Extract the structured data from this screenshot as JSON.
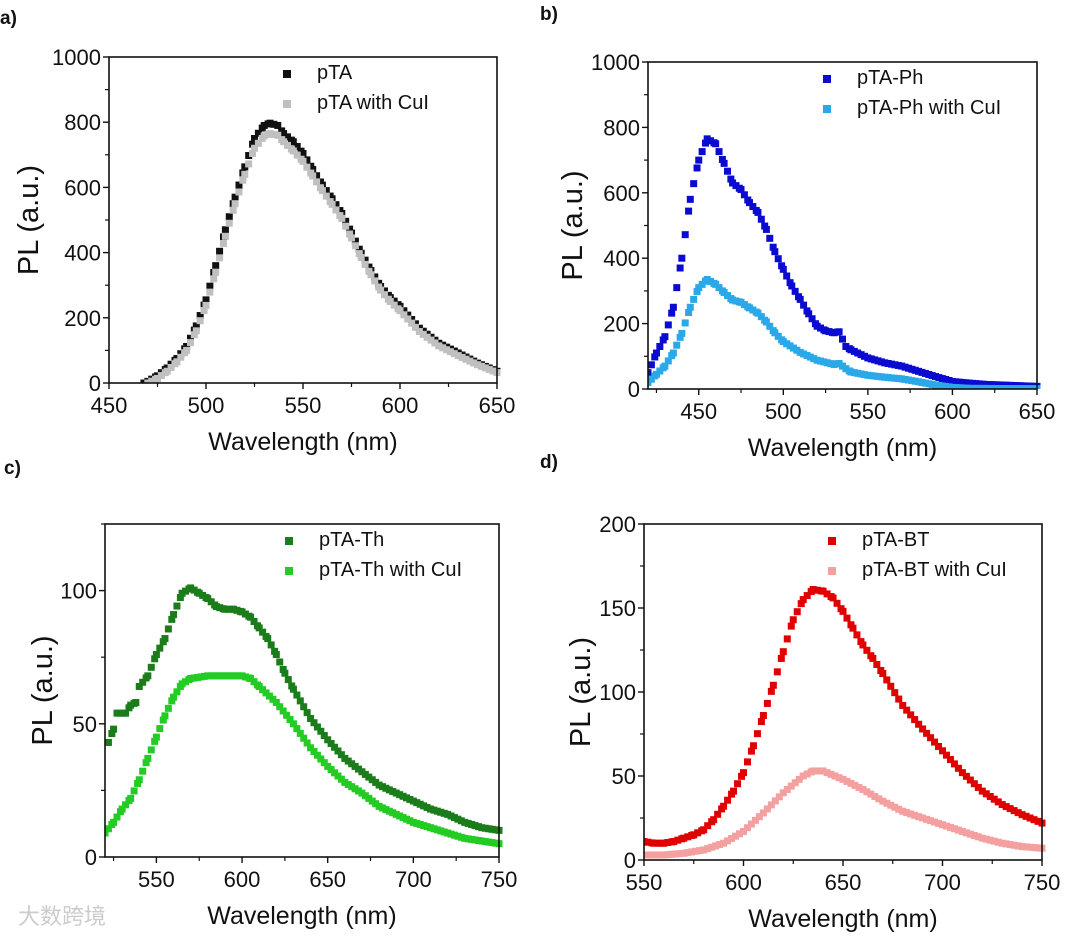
{
  "watermark": "大数跨境",
  "chart_data": [
    {
      "panel": "a)",
      "type": "scatter",
      "xlabel": "Wavelength (nm)",
      "ylabel": "PL (a.u.)",
      "xlim": [
        450,
        650
      ],
      "ylim": [
        0,
        1000
      ],
      "xticks": [
        450,
        500,
        550,
        600,
        650
      ],
      "yticks": [
        0,
        200,
        400,
        600,
        800,
        1000
      ],
      "xminor": 25,
      "yminor": 100,
      "legend": "top-right",
      "series": [
        {
          "name": "pTA",
          "color": "#111111",
          "x": [
            468,
            470,
            475,
            480,
            485,
            490,
            495,
            500,
            505,
            510,
            515,
            520,
            525,
            530,
            533,
            537,
            540,
            545,
            550,
            555,
            560,
            565,
            570,
            575,
            580,
            585,
            590,
            595,
            600,
            610,
            620,
            630,
            640,
            650
          ],
          "y": [
            0,
            5,
            22,
            46,
            75,
            112,
            175,
            255,
            360,
            470,
            570,
            663,
            750,
            790,
            797,
            790,
            765,
            740,
            704,
            655,
            607,
            565,
            520,
            460,
            398,
            345,
            296,
            262,
            235,
            168,
            122,
            92,
            61,
            36
          ]
        },
        {
          "name": "pTA with CuI",
          "color": "#c0c0c0",
          "x": [
            470,
            475,
            480,
            485,
            490,
            495,
            500,
            505,
            510,
            515,
            520,
            525,
            530,
            533,
            537,
            540,
            545,
            550,
            555,
            560,
            565,
            570,
            575,
            580,
            585,
            590,
            595,
            600,
            610,
            620,
            630,
            640,
            650
          ],
          "y": [
            0,
            14,
            36,
            65,
            100,
            160,
            238,
            340,
            450,
            550,
            640,
            720,
            758,
            765,
            760,
            740,
            712,
            680,
            635,
            590,
            548,
            505,
            445,
            385,
            332,
            285,
            250,
            222,
            158,
            114,
            84,
            56,
            32
          ]
        }
      ]
    },
    {
      "panel": "b)",
      "type": "scatter",
      "xlabel": "Wavelength (nm)",
      "ylabel": "PL (a.u.)",
      "xlim": [
        420,
        650
      ],
      "ylim": [
        0,
        1000
      ],
      "xticks": [
        450,
        500,
        550,
        600,
        650
      ],
      "yticks": [
        0,
        200,
        400,
        600,
        800,
        1000
      ],
      "xminor": 25,
      "yminor": 100,
      "legend": "top-right",
      "series": [
        {
          "name": "pTA-Ph",
          "color": "#0a0ad0",
          "x": [
            420,
            425,
            430,
            435,
            440,
            445,
            450,
            455,
            460,
            465,
            470,
            475,
            480,
            485,
            490,
            495,
            500,
            505,
            510,
            515,
            520,
            525,
            530,
            533,
            537,
            540,
            550,
            560,
            570,
            580,
            590,
            600,
            610,
            620,
            650
          ],
          "y": [
            50,
            110,
            160,
            250,
            400,
            580,
            700,
            765,
            750,
            690,
            630,
            610,
            570,
            540,
            488,
            420,
            366,
            315,
            274,
            230,
            192,
            178,
            172,
            175,
            130,
            120,
            95,
            80,
            70,
            54,
            38,
            23,
            18,
            14,
            8
          ]
        },
        {
          "name": "pTA-Ph with CuI",
          "color": "#2aa8e8",
          "x": [
            420,
            425,
            430,
            435,
            440,
            445,
            450,
            455,
            460,
            465,
            470,
            475,
            480,
            485,
            490,
            495,
            500,
            510,
            520,
            530,
            533,
            537,
            540,
            550,
            560,
            570,
            580,
            590,
            600,
            610,
            650
          ],
          "y": [
            20,
            45,
            70,
            110,
            170,
            250,
            310,
            335,
            320,
            295,
            272,
            265,
            248,
            232,
            205,
            172,
            145,
            112,
            88,
            75,
            78,
            62,
            52,
            42,
            36,
            31,
            22,
            12,
            5,
            2,
            1
          ]
        }
      ]
    },
    {
      "panel": "c)",
      "type": "scatter",
      "xlabel": "Wavelength (nm)",
      "ylabel": "PL (a.u.)",
      "xlim": [
        520,
        750
      ],
      "ylim": [
        0,
        125
      ],
      "xticks": [
        550,
        600,
        650,
        700,
        750
      ],
      "yticks": [
        0,
        50,
        100
      ],
      "xminor": 25,
      "yminor": 25,
      "legend": "top-right",
      "series": [
        {
          "name": "pTA-Th",
          "color": "#1a7d1a",
          "x": [
            520,
            522,
            525,
            527,
            532,
            535,
            538,
            540,
            545,
            550,
            555,
            560,
            565,
            570,
            575,
            580,
            585,
            590,
            595,
            600,
            605,
            610,
            615,
            620,
            625,
            630,
            640,
            650,
            660,
            670,
            680,
            690,
            700,
            710,
            720,
            730,
            740,
            750
          ],
          "y": [
            43,
            43,
            48,
            54,
            54,
            57,
            58,
            64,
            68,
            76,
            82,
            91,
            99,
            101,
            99,
            97,
            94,
            93,
            93,
            92,
            90,
            86,
            82,
            76,
            69,
            63,
            52,
            44,
            37,
            32,
            27,
            24,
            21,
            18,
            16,
            13,
            11,
            10
          ]
        },
        {
          "name": "pTA-Th with CuI",
          "color": "#22cc22",
          "x": [
            520,
            525,
            530,
            535,
            540,
            545,
            550,
            555,
            560,
            565,
            570,
            580,
            590,
            600,
            605,
            610,
            620,
            630,
            640,
            650,
            660,
            670,
            680,
            690,
            700,
            710,
            720,
            730,
            740,
            750
          ],
          "y": [
            9,
            13,
            18,
            22,
            29,
            37,
            45,
            53,
            60,
            65,
            67,
            68,
            68,
            68,
            67,
            64,
            58,
            50,
            41,
            34,
            28,
            24,
            19,
            16,
            13,
            11,
            9,
            7,
            6,
            5
          ]
        }
      ]
    },
    {
      "panel": "d)",
      "type": "scatter",
      "xlabel": "Wavelength (nm)",
      "ylabel": "PL (a.u.)",
      "xlim": [
        550,
        750
      ],
      "ylim": [
        0,
        200
      ],
      "xticks": [
        550,
        600,
        650,
        700,
        750
      ],
      "yticks": [
        0,
        50,
        100,
        150,
        200
      ],
      "xminor": 25,
      "yminor": 25,
      "legend": "top-right",
      "series": [
        {
          "name": "pTA-BT",
          "color": "#e00000",
          "x": [
            550,
            555,
            560,
            565,
            570,
            575,
            580,
            585,
            590,
            595,
            600,
            605,
            610,
            615,
            620,
            625,
            630,
            635,
            640,
            645,
            650,
            655,
            660,
            665,
            670,
            680,
            690,
            700,
            710,
            720,
            730,
            740,
            750
          ],
          "y": [
            11,
            10,
            10,
            11,
            13,
            15,
            18,
            24,
            32,
            41,
            52,
            68,
            86,
            104,
            124,
            143,
            155,
            161,
            160,
            156,
            148,
            138,
            128,
            120,
            111,
            92,
            78,
            65,
            52,
            41,
            33,
            27,
            22
          ]
        },
        {
          "name": "pTA-BT with CuI",
          "color": "#f4a0a0",
          "x": [
            550,
            560,
            570,
            580,
            590,
            600,
            610,
            620,
            630,
            635,
            640,
            650,
            660,
            670,
            680,
            690,
            700,
            710,
            720,
            730,
            740,
            750
          ],
          "y": [
            3,
            3,
            4,
            6,
            10,
            17,
            28,
            40,
            50,
            53,
            53,
            48,
            42,
            35,
            29,
            25,
            21,
            17,
            13,
            10,
            8,
            7
          ]
        }
      ]
    }
  ]
}
